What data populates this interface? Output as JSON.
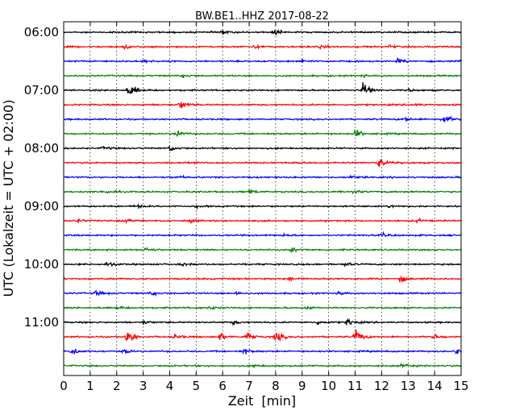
{
  "chart_data": {
    "type": "line",
    "title": "BW.BE1..HHZ 2017-08-22",
    "xlabel": "Zeit  [min]",
    "ylabel": "UTC (Lokalzeit = UTC + 02:00)",
    "xlim": [
      0,
      15
    ],
    "x_ticks": [
      "0",
      "1",
      "2",
      "3",
      "4",
      "5",
      "6",
      "7",
      "8",
      "9",
      "10",
      "11",
      "12",
      "13",
      "14",
      "15"
    ],
    "y_ticks": [
      "06:00",
      "07:00",
      "08:00",
      "09:00",
      "10:00",
      "11:00"
    ],
    "trace_interval_minutes": 15,
    "grid": true,
    "colors": [
      "#000000",
      "#ff0000",
      "#0000ff",
      "#008000"
    ],
    "traces": [
      {
        "start": "06:00",
        "color": "#000000",
        "events": [
          [
            5.9,
            0.25
          ],
          [
            7.95,
            0.35
          ]
        ]
      },
      {
        "start": "06:15",
        "color": "#ff0000",
        "events": [
          [
            2.3,
            0.2
          ],
          [
            7.2,
            0.2
          ],
          [
            9.7,
            0.15
          ],
          [
            12.3,
            0.15
          ]
        ]
      },
      {
        "start": "06:30",
        "color": "#0000ff",
        "events": [
          [
            3.0,
            0.15
          ],
          [
            9.0,
            0.15
          ],
          [
            12.6,
            0.25
          ],
          [
            15.0,
            0.2
          ]
        ]
      },
      {
        "start": "06:45",
        "color": "#008000",
        "events": [
          [
            4.5,
            0.15
          ],
          [
            11.2,
            0.15
          ]
        ]
      },
      {
        "start": "07:00",
        "color": "#000000",
        "events": [
          [
            2.45,
            1.0
          ],
          [
            11.3,
            1.0
          ],
          [
            13.0,
            0.15
          ]
        ]
      },
      {
        "start": "07:15",
        "color": "#ff0000",
        "events": [
          [
            4.4,
            0.6
          ],
          [
            13.2,
            0.15
          ]
        ]
      },
      {
        "start": "07:30",
        "color": "#0000ff",
        "events": [
          [
            12.85,
            0.25
          ],
          [
            14.3,
            0.75
          ]
        ]
      },
      {
        "start": "07:45",
        "color": "#008000",
        "events": [
          [
            4.2,
            0.55
          ],
          [
            11.0,
            0.5
          ]
        ]
      },
      {
        "start": "08:00",
        "color": "#000000",
        "events": [
          [
            1.5,
            0.2
          ],
          [
            4.0,
            0.4
          ]
        ]
      },
      {
        "start": "08:15",
        "color": "#ff0000",
        "events": [
          [
            11.9,
            0.65
          ],
          [
            8.75,
            0.15
          ]
        ]
      },
      {
        "start": "08:30",
        "color": "#0000ff",
        "events": [
          [
            4.3,
            0.15
          ],
          [
            10.8,
            0.15
          ]
        ]
      },
      {
        "start": "08:45",
        "color": "#008000",
        "events": [
          [
            1.5,
            0.2
          ],
          [
            7.0,
            0.25
          ],
          [
            10.9,
            0.25
          ]
        ]
      },
      {
        "start": "09:00",
        "color": "#000000",
        "events": [
          [
            2.7,
            0.2
          ],
          [
            5.0,
            0.15
          ],
          [
            12.3,
            0.15
          ]
        ]
      },
      {
        "start": "09:15",
        "color": "#ff0000",
        "events": [
          [
            0.5,
            0.2
          ],
          [
            2.3,
            0.2
          ],
          [
            4.8,
            0.15
          ],
          [
            13.3,
            0.2
          ]
        ]
      },
      {
        "start": "09:30",
        "color": "#0000ff",
        "events": [
          [
            8.3,
            0.15
          ],
          [
            12.0,
            0.2
          ]
        ]
      },
      {
        "start": "09:45",
        "color": "#008000",
        "events": [
          [
            3.05,
            0.3
          ],
          [
            8.6,
            0.25
          ]
        ]
      },
      {
        "start": "10:00",
        "color": "#000000",
        "events": [
          [
            1.65,
            0.25
          ],
          [
            4.5,
            0.15
          ],
          [
            10.6,
            0.2
          ]
        ]
      },
      {
        "start": "10:15",
        "color": "#ff0000",
        "events": [
          [
            8.5,
            0.2
          ],
          [
            12.7,
            0.4
          ]
        ]
      },
      {
        "start": "10:30",
        "color": "#0000ff",
        "events": [
          [
            1.2,
            0.3
          ],
          [
            3.3,
            0.2
          ],
          [
            6.5,
            0.2
          ],
          [
            10.4,
            0.2
          ]
        ]
      },
      {
        "start": "10:45",
        "color": "#008000",
        "events": [
          [
            2.0,
            0.15
          ],
          [
            5.5,
            0.15
          ],
          [
            9.2,
            0.15
          ]
        ]
      },
      {
        "start": "11:00",
        "color": "#000000",
        "events": [
          [
            3.0,
            0.2
          ],
          [
            6.4,
            0.25
          ],
          [
            9.6,
            0.25
          ],
          [
            10.7,
            0.45
          ]
        ]
      },
      {
        "start": "11:15",
        "color": "#ff0000",
        "events": [
          [
            2.4,
            1.0
          ],
          [
            4.2,
            0.3
          ],
          [
            5.9,
            0.45
          ],
          [
            6.9,
            0.5
          ],
          [
            8.0,
            0.65
          ],
          [
            11.0,
            1.0
          ],
          [
            14.0,
            0.3
          ]
        ]
      },
      {
        "start": "11:30",
        "color": "#0000ff",
        "events": [
          [
            0.3,
            0.45
          ],
          [
            2.3,
            0.25
          ],
          [
            6.8,
            0.3
          ],
          [
            14.8,
            0.4
          ]
        ]
      },
      {
        "start": "11:45",
        "color": "#008000",
        "events": [
          [
            12.8,
            0.35
          ],
          [
            7.2,
            0.15
          ]
        ]
      }
    ]
  }
}
